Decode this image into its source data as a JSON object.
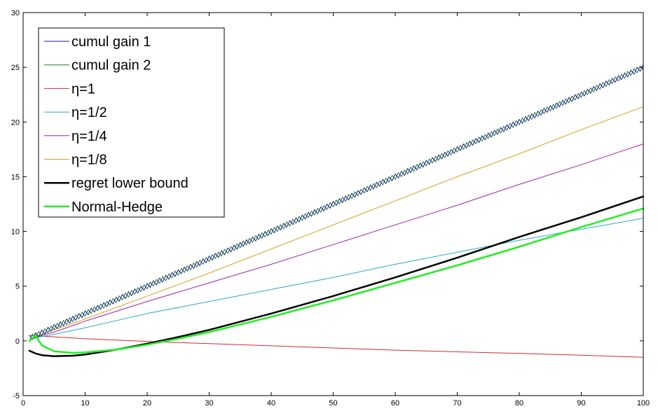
{
  "chart_data": {
    "type": "line",
    "title": "",
    "xlabel": "",
    "ylabel": "",
    "xlim": [
      0,
      100
    ],
    "ylim": [
      -5,
      30
    ],
    "xticks": [
      0,
      10,
      20,
      30,
      40,
      50,
      60,
      70,
      80,
      90,
      100
    ],
    "yticks": [
      -5,
      0,
      5,
      10,
      15,
      20,
      25,
      30
    ],
    "grid": false,
    "legend_position": "top-left",
    "series": [
      {
        "name": "cumul gain 1",
        "color": "#1a1aa0",
        "width": 1,
        "style": "zigzag",
        "x": [
          1,
          100
        ],
        "y": [
          0.25,
          25.0
        ],
        "zigzag_amplitude": 0.25
      },
      {
        "name": "cumul gain 2",
        "color": "#1a7a1a",
        "width": 1,
        "style": "zigzag-inverse",
        "x": [
          1,
          100
        ],
        "y": [
          0.25,
          25.0
        ],
        "zigzag_amplitude": 0.25
      },
      {
        "name": "η=1",
        "color": "#d42a2a",
        "width": 1,
        "x": [
          1,
          10,
          20,
          30,
          40,
          50,
          60,
          70,
          80,
          90,
          100
        ],
        "y": [
          0.5,
          0.2,
          -0.05,
          -0.25,
          -0.45,
          -0.65,
          -0.85,
          -1.0,
          -1.15,
          -1.3,
          -1.5
        ]
      },
      {
        "name": "η=1/2",
        "color": "#2aa6c9",
        "width": 1,
        "x": [
          1,
          2,
          5,
          10,
          20,
          30,
          40,
          50,
          60,
          70,
          80,
          90,
          100
        ],
        "y": [
          0.0,
          0.3,
          0.6,
          1.2,
          2.5,
          3.6,
          4.7,
          5.8,
          7.0,
          8.1,
          9.2,
          10.2,
          11.2
        ]
      },
      {
        "name": "η=1/4",
        "color": "#a020a8",
        "width": 1,
        "x": [
          1,
          2,
          5,
          10,
          20,
          30,
          40,
          50,
          60,
          70,
          80,
          90,
          100
        ],
        "y": [
          0.0,
          0.35,
          0.8,
          1.8,
          3.6,
          5.3,
          7.0,
          8.8,
          10.6,
          12.4,
          14.3,
          16.1,
          18.0
        ]
      },
      {
        "name": "η=1/8",
        "color": "#d4a020",
        "width": 1,
        "x": [
          1,
          2,
          5,
          10,
          20,
          30,
          40,
          50,
          60,
          70,
          80,
          90,
          100
        ],
        "y": [
          0.0,
          0.4,
          1.0,
          2.0,
          4.1,
          6.2,
          8.4,
          10.6,
          12.8,
          15.0,
          17.1,
          19.3,
          21.4
        ]
      },
      {
        "name": "regret lower bound",
        "color": "#000000",
        "width": 2.5,
        "x": [
          1,
          2,
          3,
          5,
          8,
          10,
          15,
          20,
          25,
          30,
          40,
          50,
          60,
          70,
          80,
          90,
          100
        ],
        "y": [
          -0.9,
          -1.15,
          -1.3,
          -1.4,
          -1.35,
          -1.25,
          -0.8,
          -0.25,
          0.35,
          1.0,
          2.5,
          4.1,
          5.8,
          7.6,
          9.5,
          11.3,
          13.2
        ]
      },
      {
        "name": "Normal-Hedge",
        "color": "#22ee22",
        "width": 2.5,
        "x": [
          1,
          2,
          3,
          5,
          8,
          10,
          15,
          20,
          25,
          30,
          40,
          50,
          60,
          70,
          80,
          90,
          100
        ],
        "y": [
          0.0,
          0.5,
          -0.4,
          -0.95,
          -1.1,
          -1.05,
          -0.8,
          -0.35,
          0.2,
          0.8,
          2.2,
          3.7,
          5.3,
          6.9,
          8.6,
          10.4,
          12.1
        ]
      }
    ]
  }
}
